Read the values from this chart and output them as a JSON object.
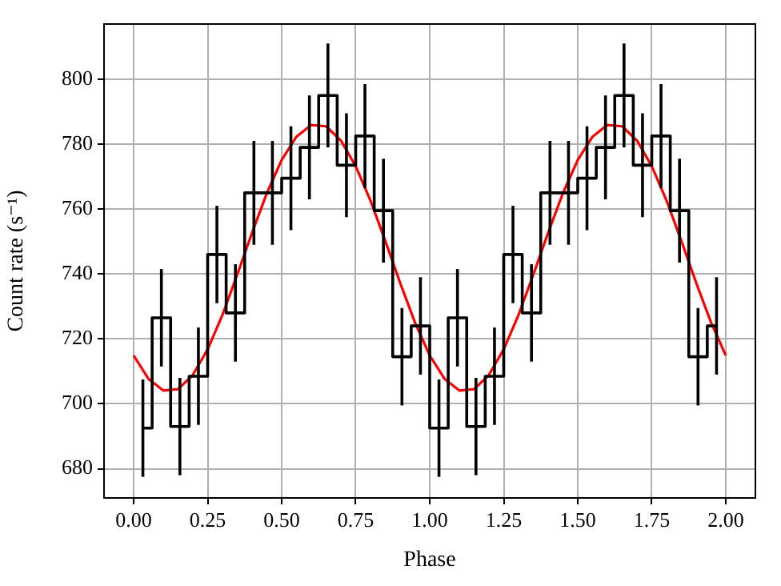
{
  "chart_data": {
    "type": "step",
    "xlabel": "Phase",
    "ylabel": "Count rate (s⁻¹)",
    "xlim": [
      -0.1,
      2.1
    ],
    "ylim": [
      671,
      817
    ],
    "xticks": [
      {
        "value": 0,
        "label": "0.00"
      },
      {
        "value": 0.25,
        "label": "0.25"
      },
      {
        "value": 0.5,
        "label": "0.50"
      },
      {
        "value": 0.75,
        "label": "0.75"
      },
      {
        "value": 1,
        "label": "1.00"
      },
      {
        "value": 1.25,
        "label": "1.25"
      },
      {
        "value": 1.5,
        "label": "1.50"
      },
      {
        "value": 1.75,
        "label": "1.75"
      },
      {
        "value": 2,
        "label": "2.00"
      }
    ],
    "yticks": [
      680,
      700,
      720,
      740,
      760,
      780,
      800
    ],
    "grid": true,
    "marker": "none",
    "series": [
      {
        "color": "#000000",
        "x": [
          0.03125,
          0.09375,
          0.15625,
          0.21875,
          0.28125,
          0.34375,
          0.40625,
          0.46875,
          0.53125,
          0.59375,
          0.65625,
          0.71875,
          0.78125,
          0.84375,
          0.90625,
          0.96875,
          1.03125,
          1.09375,
          1.15625,
          1.21875,
          1.28125,
          1.34375,
          1.40625,
          1.46875,
          1.53125,
          1.59375,
          1.65625,
          1.71875,
          1.78125,
          1.84375,
          1.90625,
          1.96875
        ],
        "values": [
          692.5,
          726.5,
          693,
          708.5,
          746,
          728,
          765,
          765,
          769.5,
          779,
          795,
          773.5,
          782.5,
          759.5,
          714.5,
          724,
          692.5,
          726.5,
          693,
          708.5,
          746,
          728,
          765,
          765,
          769.5,
          779,
          795,
          773.5,
          782.5,
          759.5,
          714.5,
          724
        ],
        "errors": [
          15,
          15,
          15,
          15,
          15,
          15,
          16,
          16,
          16,
          16,
          16,
          16,
          16,
          16,
          15,
          15,
          15,
          15,
          15,
          15,
          15,
          15,
          16,
          16,
          16,
          16,
          16,
          16,
          16,
          16,
          15,
          15
        ]
      },
      {
        "type": "line",
        "color": "#ff0000",
        "x": [
          0,
          0.05,
          0.1,
          0.15,
          0.2,
          0.25,
          0.3,
          0.35,
          0.4,
          0.45,
          0.5,
          0.55,
          0.6,
          0.65,
          0.7,
          0.75,
          0.8,
          0.85,
          0.9,
          0.95,
          1,
          1.05,
          1.1,
          1.15,
          1.2,
          1.25,
          1.3,
          1.35,
          1.4,
          1.45,
          1.5,
          1.55,
          1.6,
          1.65,
          1.7,
          1.75,
          1.8,
          1.85,
          1.9,
          1.95,
          2
        ],
        "values": [
          714.9,
          707.7,
          704.1,
          704.5,
          708.9,
          716.8,
          727.4,
          739.8,
          752.7,
          764.9,
          775.1,
          782.3,
          785.9,
          785.5,
          781.1,
          773.2,
          762.6,
          750.2,
          737.3,
          725.1,
          714.9,
          707.7,
          704.1,
          704.5,
          708.9,
          716.8,
          727.4,
          739.8,
          752.7,
          764.9,
          775.1,
          782.3,
          785.9,
          785.5,
          781.1,
          773.2,
          762.6,
          750.2,
          737.3,
          725.1,
          714.9
        ]
      }
    ]
  }
}
